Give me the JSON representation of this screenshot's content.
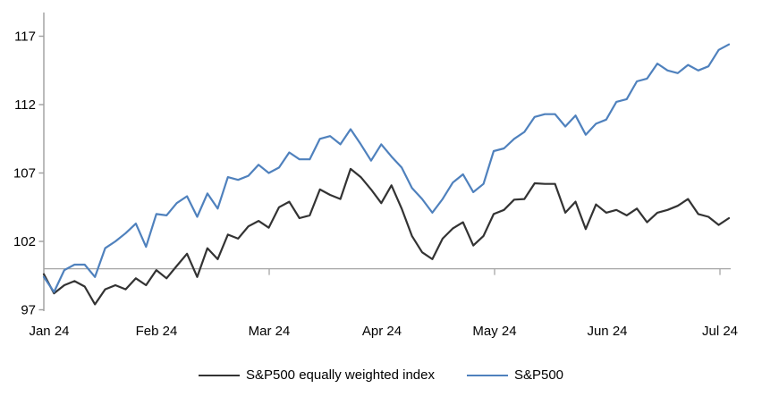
{
  "chart_data": {
    "type": "line",
    "title": "",
    "xlabel": "",
    "ylabel": "",
    "x_axis": {
      "tick_labels": [
        "Jan 24",
        "Feb 24",
        "Mar 24",
        "Apr 24",
        "May 24",
        "Jun 24",
        "Jul 24"
      ],
      "ticks_visible_at": [
        "Mar 24",
        "May 24",
        "Jul 24"
      ]
    },
    "y_axis": {
      "min": 97,
      "max": 117,
      "tick_step": 5,
      "tick_labels": [
        "117",
        "112",
        "107",
        "102",
        "97"
      ],
      "axis_crosses_at": 100
    },
    "grid": "off",
    "baseline_value": 100,
    "legend_position": "bottom-center",
    "series": [
      {
        "name": "S&P500 equally weighted index",
        "color": "#333333",
        "values": [
          99.6,
          98.2,
          98.8,
          99.1,
          98.7,
          97.4,
          98.5,
          98.8,
          98.5,
          99.3,
          98.8,
          99.9,
          99.3,
          100.2,
          101.1,
          99.4,
          101.5,
          100.7,
          102.5,
          102.2,
          103.1,
          103.5,
          103.0,
          104.5,
          104.9,
          103.7,
          103.9,
          105.8,
          105.4,
          105.1,
          107.3,
          106.7,
          105.8,
          104.8,
          106.1,
          104.4,
          102.4,
          101.2,
          100.7,
          102.2,
          102.95,
          103.4,
          101.7,
          102.4,
          104.0,
          104.3,
          105.05,
          105.1,
          106.25,
          106.2,
          106.2,
          104.1,
          104.9,
          102.9,
          104.7,
          104.1,
          104.3,
          103.9,
          104.4,
          103.4,
          104.1,
          104.3,
          104.6,
          105.1,
          104.0,
          103.8,
          103.2,
          103.7
        ]
      },
      {
        "name": "S&P500",
        "color": "#4f81bd",
        "values": [
          99.4,
          98.3,
          99.9,
          100.3,
          100.3,
          99.4,
          101.5,
          102.0,
          102.6,
          103.3,
          101.6,
          104.0,
          103.9,
          104.8,
          105.3,
          103.8,
          105.5,
          104.4,
          106.7,
          106.5,
          106.8,
          107.6,
          107.0,
          107.4,
          108.5,
          108.0,
          108.0,
          109.5,
          109.7,
          109.1,
          110.2,
          109.1,
          107.9,
          109.1,
          108.2,
          107.4,
          105.9,
          105.1,
          104.1,
          105.1,
          106.3,
          106.9,
          105.6,
          106.2,
          108.6,
          108.8,
          109.5,
          110.0,
          111.1,
          111.3,
          111.3,
          110.4,
          111.2,
          109.8,
          110.6,
          110.9,
          112.2,
          112.4,
          113.7,
          113.9,
          115.0,
          114.5,
          114.3,
          114.9,
          114.5,
          114.8,
          116.0,
          116.4
        ]
      }
    ]
  },
  "colors": {
    "axis_line": "#9e9e9e",
    "baseline": "#a6a6a6",
    "text": "#000000",
    "background": "#ffffff"
  }
}
